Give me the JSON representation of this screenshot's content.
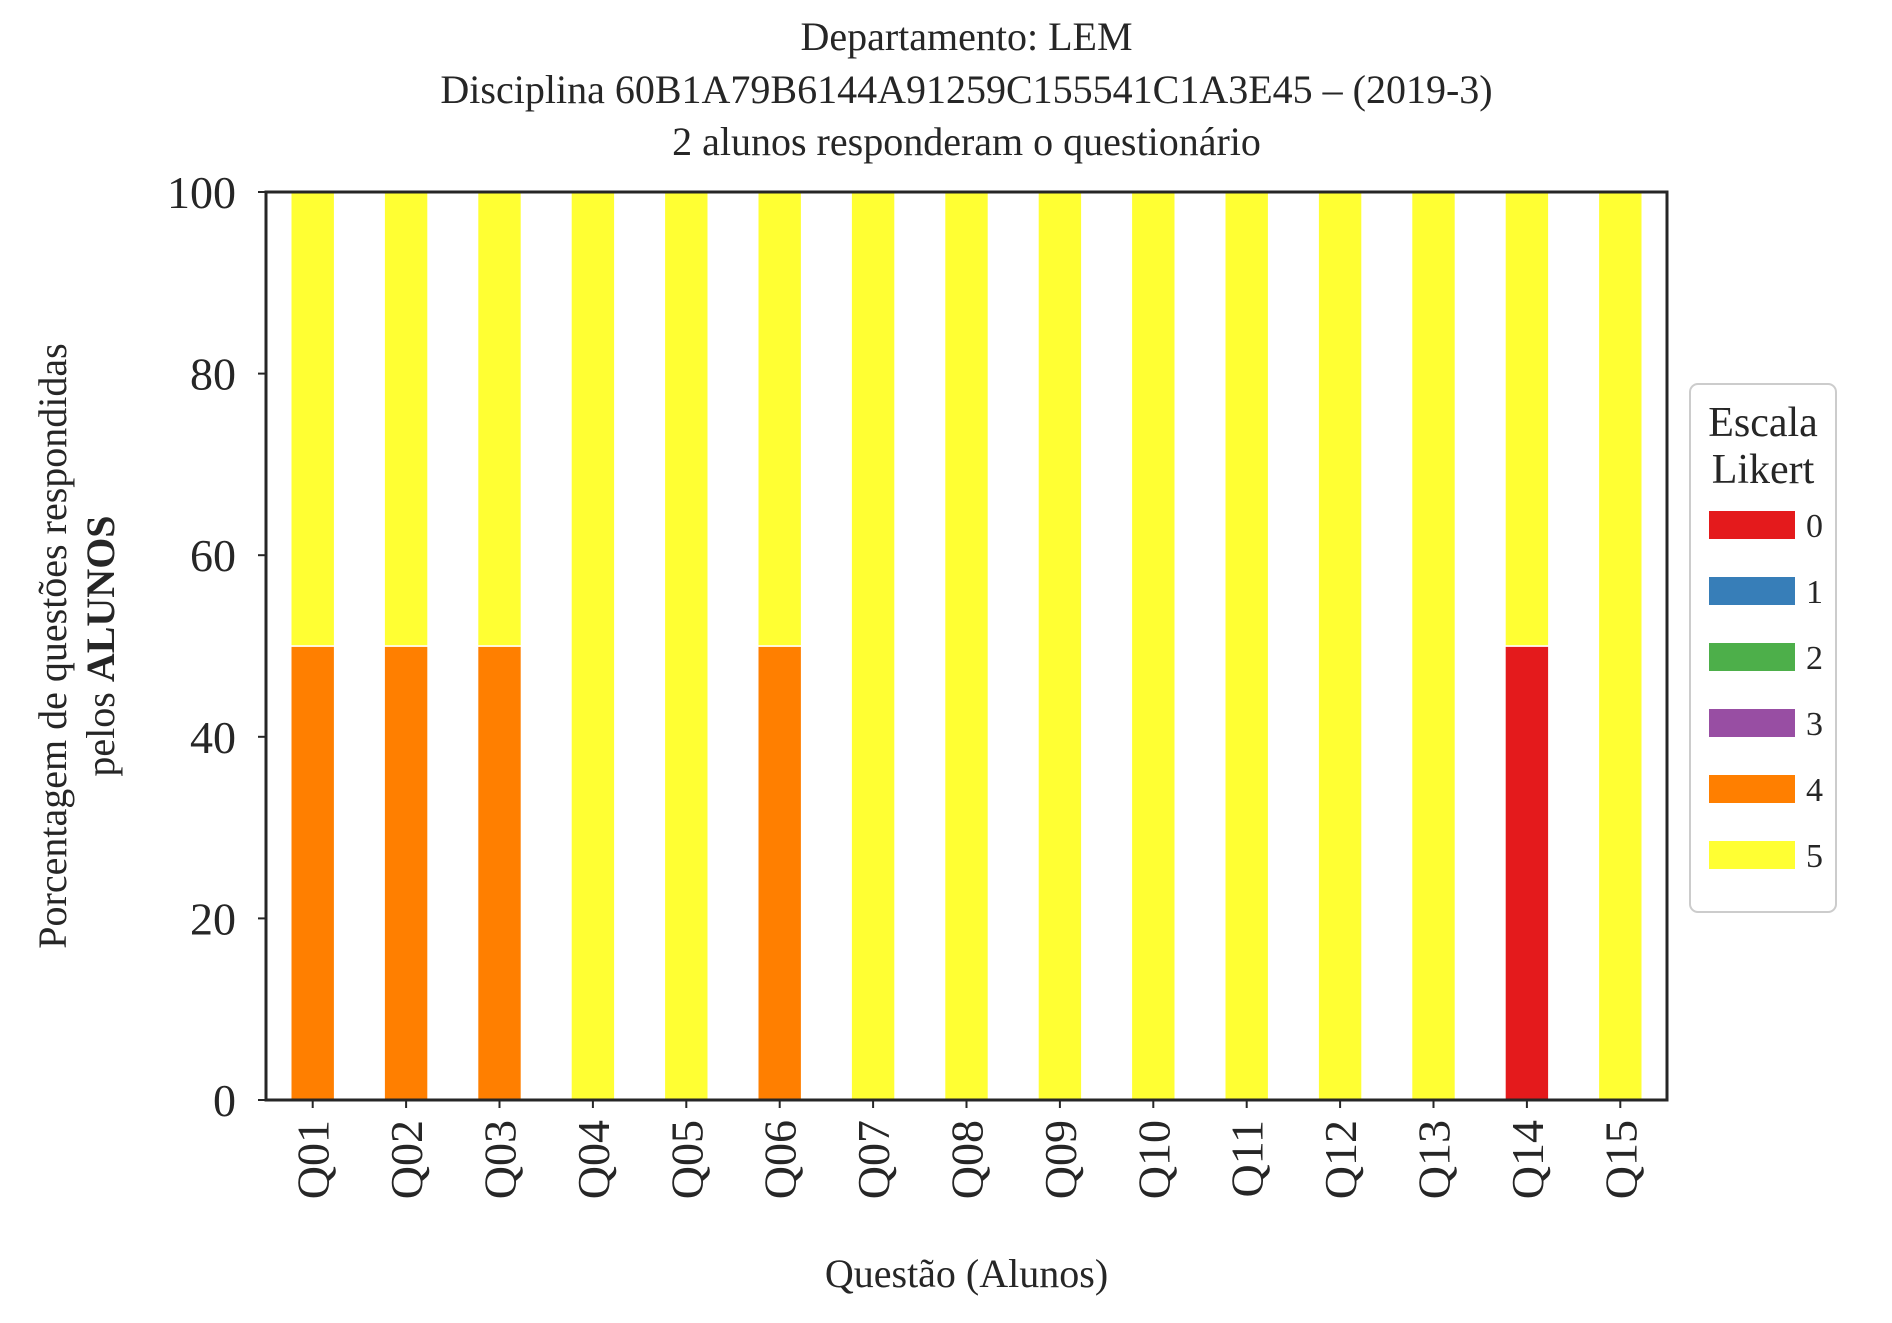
{
  "chart_data": {
    "type": "bar",
    "stacked": true,
    "title_lines": [
      "Departamento: LEM",
      "Disciplina 60B1A79B6144A91259C155541C1A3E45 – (2019-3)",
      "2 alunos responderam o questionário"
    ],
    "xlabel": "Questão (Alunos)",
    "ylabel_line1": "Porcentagem de questões respondidas",
    "ylabel_line2_prefix": "pelos ",
    "ylabel_line2_bold": "ALUNOS",
    "ylim": [
      0,
      100
    ],
    "yticks": [
      "0",
      "20",
      "40",
      "60",
      "80",
      "100"
    ],
    "grid": false,
    "legend_placement": "right-center",
    "categories": [
      "Q01",
      "Q02",
      "Q03",
      "Q04",
      "Q05",
      "Q06",
      "Q07",
      "Q08",
      "Q09",
      "Q10",
      "Q11",
      "Q12",
      "Q13",
      "Q14",
      "Q15"
    ],
    "legend_title_lines": [
      "Escala",
      "Likert"
    ],
    "series": [
      {
        "name": "0",
        "color": "#e41a1c",
        "values": [
          0,
          0,
          0,
          0,
          0,
          0,
          0,
          0,
          0,
          0,
          0,
          0,
          0,
          50,
          0
        ]
      },
      {
        "name": "1",
        "color": "#377eb8",
        "values": [
          0,
          0,
          0,
          0,
          0,
          0,
          0,
          0,
          0,
          0,
          0,
          0,
          0,
          0,
          0
        ]
      },
      {
        "name": "2",
        "color": "#4daf4a",
        "values": [
          0,
          0,
          0,
          0,
          0,
          0,
          0,
          0,
          0,
          0,
          0,
          0,
          0,
          0,
          0
        ]
      },
      {
        "name": "3",
        "color": "#984ea3",
        "values": [
          0,
          0,
          0,
          0,
          0,
          0,
          0,
          0,
          0,
          0,
          0,
          0,
          0,
          0,
          0
        ]
      },
      {
        "name": "4",
        "color": "#ff7f00",
        "values": [
          50,
          50,
          50,
          0,
          0,
          50,
          0,
          0,
          0,
          0,
          0,
          0,
          0,
          0,
          0
        ]
      },
      {
        "name": "5",
        "color": "#ffff33",
        "values": [
          50,
          50,
          50,
          100,
          100,
          50,
          100,
          100,
          100,
          100,
          100,
          100,
          100,
          50,
          100
        ]
      }
    ]
  }
}
